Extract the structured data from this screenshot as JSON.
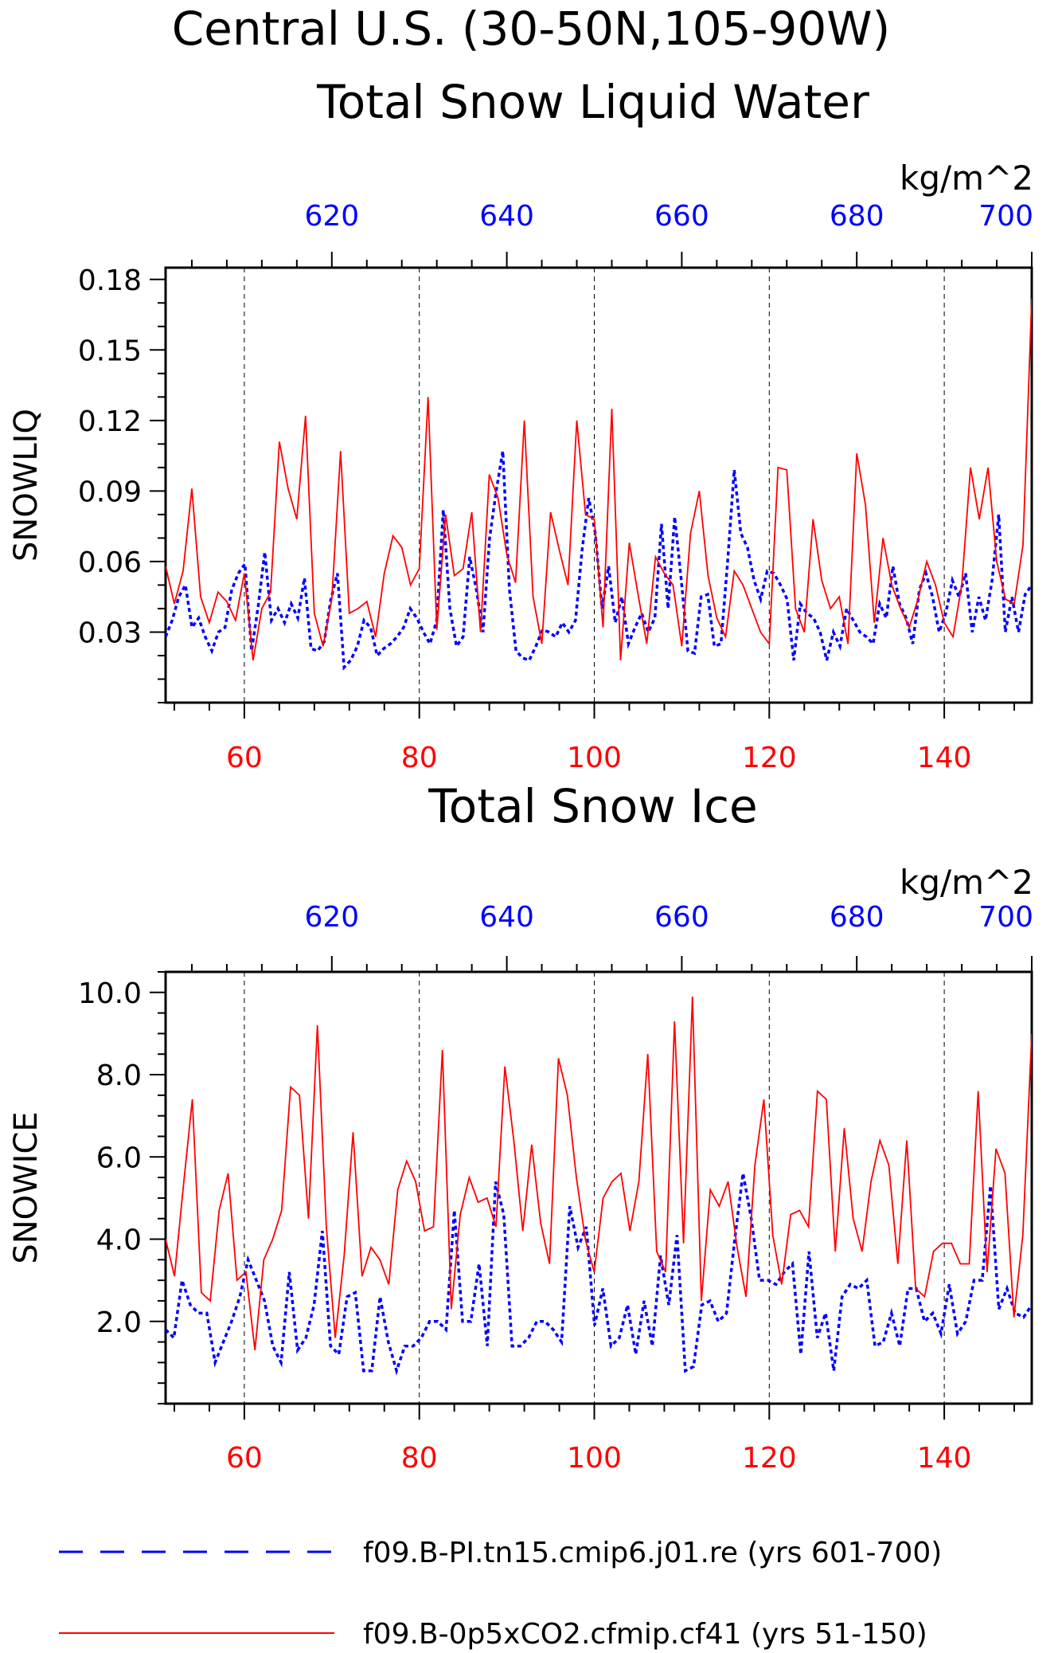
{
  "title": "Central U.S. (30-50N,105-90W)",
  "colors": {
    "red": "#ff0000",
    "blue": "#0000ff",
    "black": "#000000"
  },
  "legend": [
    {
      "label": "f09.B-PI.tn15.cmip6.j01.re (yrs 601-700)",
      "color": "#0000ff",
      "style": "dashed"
    },
    {
      "label": "f09.B-0p5xCO2.cfmip.cf41 (yrs 51-150)",
      "color": "#ff0000",
      "style": "solid"
    }
  ],
  "chart_data": [
    {
      "type": "line",
      "title": "Total Snow Liquid Water",
      "units": "kg/m^2",
      "ylabel": "SNOWLIQ",
      "ylim": [
        0.0,
        0.185
      ],
      "yticks": [
        "0.03",
        "0.06",
        "0.09",
        "0.12",
        "0.15",
        "0.18"
      ],
      "x_bottom": {
        "range": [
          51,
          150
        ],
        "ticks": [
          60,
          80,
          100,
          120,
          140
        ],
        "color": "#ff0000"
      },
      "x_top": {
        "range": [
          601,
          700
        ],
        "ticks": [
          620,
          640,
          660,
          680,
          700
        ],
        "color": "#0000ff"
      },
      "grid": "vertical dashed at bottom ticks",
      "series": [
        {
          "years": "601-700",
          "color": "#0000ff",
          "style": "dashed",
          "values": [
            0.028,
            0.035,
            0.045,
            0.05,
            0.032,
            0.036,
            0.028,
            0.022,
            0.03,
            0.032,
            0.048,
            0.055,
            0.059,
            0.022,
            0.041,
            0.064,
            0.035,
            0.04,
            0.034,
            0.042,
            0.036,
            0.053,
            0.023,
            0.022,
            0.026,
            0.044,
            0.055,
            0.015,
            0.018,
            0.024,
            0.035,
            0.032,
            0.02,
            0.023,
            0.025,
            0.028,
            0.032,
            0.04,
            0.036,
            0.03,
            0.025,
            0.035,
            0.082,
            0.04,
            0.024,
            0.028,
            0.062,
            0.048,
            0.03,
            0.07,
            0.09,
            0.107,
            0.048,
            0.022,
            0.019,
            0.018,
            0.024,
            0.031,
            0.03,
            0.028,
            0.034,
            0.03,
            0.035,
            0.065,
            0.087,
            0.072,
            0.04,
            0.058,
            0.034,
            0.045,
            0.025,
            0.032,
            0.038,
            0.03,
            0.036,
            0.076,
            0.04,
            0.079,
            0.052,
            0.022,
            0.021,
            0.045,
            0.046,
            0.024,
            0.025,
            0.06,
            0.099,
            0.072,
            0.066,
            0.052,
            0.044,
            0.056,
            0.055,
            0.05,
            0.044,
            0.018,
            0.042,
            0.038,
            0.036,
            0.03,
            0.018,
            0.03,
            0.024,
            0.04,
            0.035,
            0.03,
            0.028,
            0.025,
            0.042,
            0.036,
            0.058,
            0.042,
            0.036,
            0.025,
            0.048,
            0.055,
            0.045,
            0.03,
            0.038,
            0.052,
            0.045,
            0.055,
            0.03,
            0.045,
            0.035,
            0.052,
            0.08,
            0.03,
            0.045,
            0.03,
            0.046,
            0.05
          ],
          "x_start": 601,
          "x_end": 700
        },
        {
          "years": "51-150",
          "color": "#ff0000",
          "style": "solid",
          "values": [
            0.058,
            0.042,
            0.056,
            0.091,
            0.045,
            0.034,
            0.047,
            0.043,
            0.035,
            0.055,
            0.018,
            0.04,
            0.047,
            0.111,
            0.091,
            0.078,
            0.122,
            0.038,
            0.024,
            0.044,
            0.107,
            0.038,
            0.04,
            0.043,
            0.028,
            0.055,
            0.071,
            0.066,
            0.05,
            0.057,
            0.13,
            0.031,
            0.08,
            0.054,
            0.057,
            0.081,
            0.03,
            0.097,
            0.087,
            0.063,
            0.051,
            0.12,
            0.045,
            0.025,
            0.081,
            0.065,
            0.05,
            0.12,
            0.08,
            0.078,
            0.032,
            0.125,
            0.018,
            0.068,
            0.046,
            0.025,
            0.062,
            0.055,
            0.05,
            0.024,
            0.072,
            0.09,
            0.054,
            0.036,
            0.028,
            0.056,
            0.05,
            0.04,
            0.03,
            0.025,
            0.1,
            0.099,
            0.04,
            0.03,
            0.078,
            0.052,
            0.04,
            0.045,
            0.025,
            0.106,
            0.084,
            0.034,
            0.07,
            0.05,
            0.04,
            0.032,
            0.044,
            0.06,
            0.05,
            0.034,
            0.028,
            0.05,
            0.1,
            0.078,
            0.1,
            0.06,
            0.044,
            0.042,
            0.067,
            0.172
          ],
          "x_start": 51,
          "x_end": 150
        }
      ]
    },
    {
      "type": "line",
      "title": "Total Snow Ice",
      "units": "kg/m^2",
      "ylabel": "SNOWICE",
      "ylim": [
        0.0,
        10.5
      ],
      "yticks": [
        "2.0",
        "4.0",
        "6.0",
        "8.0",
        "10.0"
      ],
      "x_bottom": {
        "range": [
          51,
          150
        ],
        "ticks": [
          60,
          80,
          100,
          120,
          140
        ],
        "color": "#ff0000"
      },
      "x_top": {
        "range": [
          601,
          700
        ],
        "ticks": [
          620,
          640,
          660,
          680,
          700
        ],
        "color": "#0000ff"
      },
      "grid": "vertical dashed at bottom ticks",
      "series": [
        {
          "years": "601-700",
          "color": "#0000ff",
          "style": "dashed",
          "values": [
            1.8,
            1.6,
            3.0,
            2.4,
            2.2,
            2.2,
            1.0,
            1.5,
            2.0,
            2.6,
            3.5,
            3.0,
            2.5,
            1.4,
            1.0,
            3.2,
            1.3,
            1.6,
            2.4,
            4.2,
            1.4,
            1.2,
            2.6,
            2.7,
            0.8,
            0.8,
            2.6,
            1.5,
            0.8,
            1.4,
            1.4,
            1.6,
            2.0,
            2.0,
            1.8,
            4.7,
            2.0,
            2.0,
            3.4,
            1.4,
            5.4,
            4.6,
            1.4,
            1.4,
            1.6,
            2.0,
            2.0,
            1.8,
            1.5,
            4.8,
            3.8,
            4.3,
            1.9,
            2.8,
            1.4,
            1.6,
            2.4,
            1.2,
            2.5,
            1.4,
            3.6,
            2.4,
            4.1,
            0.8,
            0.9,
            2.4,
            2.5,
            2.0,
            2.2,
            4.0,
            5.6,
            4.5,
            3.0,
            3.0,
            2.9,
            3.2,
            3.4,
            1.2,
            3.7,
            1.6,
            2.2,
            0.8,
            2.6,
            2.9,
            2.8,
            3.0,
            1.4,
            1.5,
            2.2,
            1.4,
            2.8,
            2.8,
            2.0,
            2.2,
            1.7,
            2.9,
            1.7,
            2.0,
            3.0,
            3.0,
            5.3,
            2.3,
            2.8,
            2.2,
            2.1,
            2.4
          ],
          "x_start": 601,
          "x_end": 700
        },
        {
          "years": "51-150",
          "color": "#ff0000",
          "style": "solid",
          "values": [
            4.0,
            3.1,
            5.3,
            7.4,
            2.7,
            2.5,
            4.7,
            5.6,
            3.0,
            3.2,
            1.3,
            3.5,
            4.0,
            4.7,
            7.7,
            7.5,
            4.5,
            9.2,
            4.3,
            1.6,
            3.6,
            6.6,
            3.1,
            3.8,
            3.5,
            2.9,
            5.2,
            5.9,
            5.4,
            4.2,
            4.3,
            8.6,
            2.3,
            4.6,
            5.5,
            4.9,
            5.0,
            4.3,
            8.2,
            6.4,
            4.2,
            6.3,
            4.4,
            3.4,
            8.4,
            7.5,
            5.5,
            4.0,
            3.2,
            5.0,
            5.4,
            5.6,
            4.2,
            5.4,
            8.5,
            3.7,
            3.2,
            9.3,
            3.9,
            9.9,
            2.5,
            5.2,
            4.8,
            5.4,
            3.8,
            2.6,
            5.8,
            7.4,
            4.1,
            2.9,
            4.6,
            4.7,
            4.3,
            7.6,
            7.4,
            3.7,
            6.7,
            4.5,
            3.7,
            5.4,
            6.4,
            5.8,
            3.4,
            6.4,
            2.8,
            2.6,
            3.7,
            3.9,
            3.9,
            3.4,
            3.4,
            7.6,
            3.2,
            6.2,
            5.6,
            2.1,
            4.1,
            9.0
          ],
          "x_start": 51,
          "x_end": 150
        }
      ]
    }
  ]
}
